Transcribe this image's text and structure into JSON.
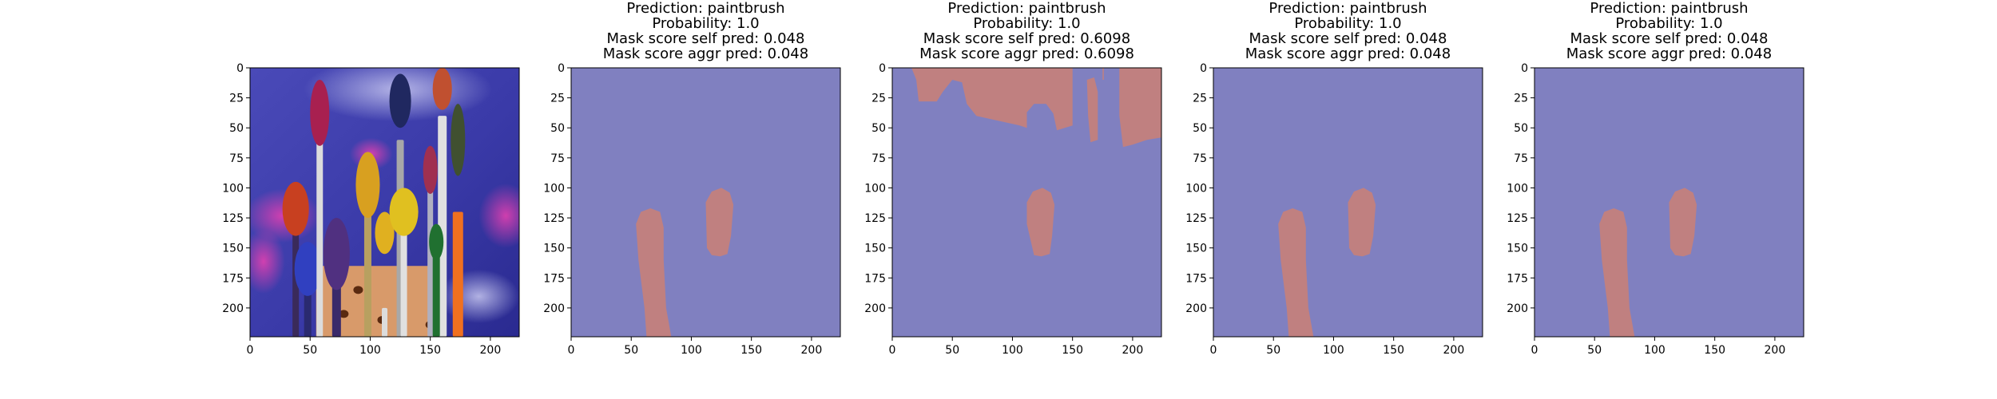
{
  "chart_data": [
    {
      "type": "image",
      "image": "paintbrushes-photo",
      "title": [],
      "xticks": [
        "0",
        "50",
        "100",
        "150",
        "200"
      ],
      "yticks": [
        "0",
        "25",
        "50",
        "75",
        "100",
        "125",
        "150",
        "175",
        "200"
      ],
      "xlim": [
        0,
        224
      ],
      "ylim": [
        224,
        0
      ]
    },
    {
      "type": "mask-overlay",
      "title": [
        "Prediction: paintbrush",
        "Probability: 1.0",
        "Mask score self pred: 0.048",
        "Mask score aggr pred: 0.048"
      ],
      "xticks": [
        "0",
        "50",
        "100",
        "150",
        "200"
      ],
      "yticks": [
        "0",
        "25",
        "50",
        "75",
        "100",
        "125",
        "150",
        "175",
        "200"
      ],
      "xlim": [
        0,
        224
      ],
      "ylim": [
        224,
        0
      ],
      "background_color": "#8080c0",
      "mask_color": "#c08080",
      "variant": "small"
    },
    {
      "type": "mask-overlay",
      "title": [
        "Prediction: paintbrush",
        "Probability: 1.0",
        "Mask score self pred: 0.6098",
        "Mask score aggr pred: 0.6098"
      ],
      "xticks": [
        "0",
        "50",
        "100",
        "150",
        "200"
      ],
      "yticks": [
        "0",
        "25",
        "50",
        "75",
        "100",
        "125",
        "150",
        "175",
        "200"
      ],
      "xlim": [
        0,
        224
      ],
      "ylim": [
        224,
        0
      ],
      "background_color": "#8080c0",
      "mask_color": "#c08080",
      "variant": "large"
    },
    {
      "type": "mask-overlay",
      "title": [
        "Prediction: paintbrush",
        "Probability: 1.0",
        "Mask score self pred: 0.048",
        "Mask score aggr pred: 0.048"
      ],
      "xticks": [
        "0",
        "50",
        "100",
        "150",
        "200"
      ],
      "yticks": [
        "0",
        "25",
        "50",
        "75",
        "100",
        "125",
        "150",
        "175",
        "200"
      ],
      "xlim": [
        0,
        224
      ],
      "ylim": [
        224,
        0
      ],
      "background_color": "#8080c0",
      "mask_color": "#c08080",
      "variant": "small"
    },
    {
      "type": "mask-overlay",
      "title": [
        "Prediction: paintbrush",
        "Probability: 1.0",
        "Mask score self pred: 0.048",
        "Mask score aggr pred: 0.048"
      ],
      "xticks": [
        "0",
        "50",
        "100",
        "150",
        "200"
      ],
      "yticks": [
        "0",
        "25",
        "50",
        "75",
        "100",
        "125",
        "150",
        "175",
        "200"
      ],
      "xlim": [
        0,
        224
      ],
      "ylim": [
        224,
        0
      ],
      "background_color": "#8080c0",
      "mask_color": "#c08080",
      "variant": "small"
    }
  ]
}
